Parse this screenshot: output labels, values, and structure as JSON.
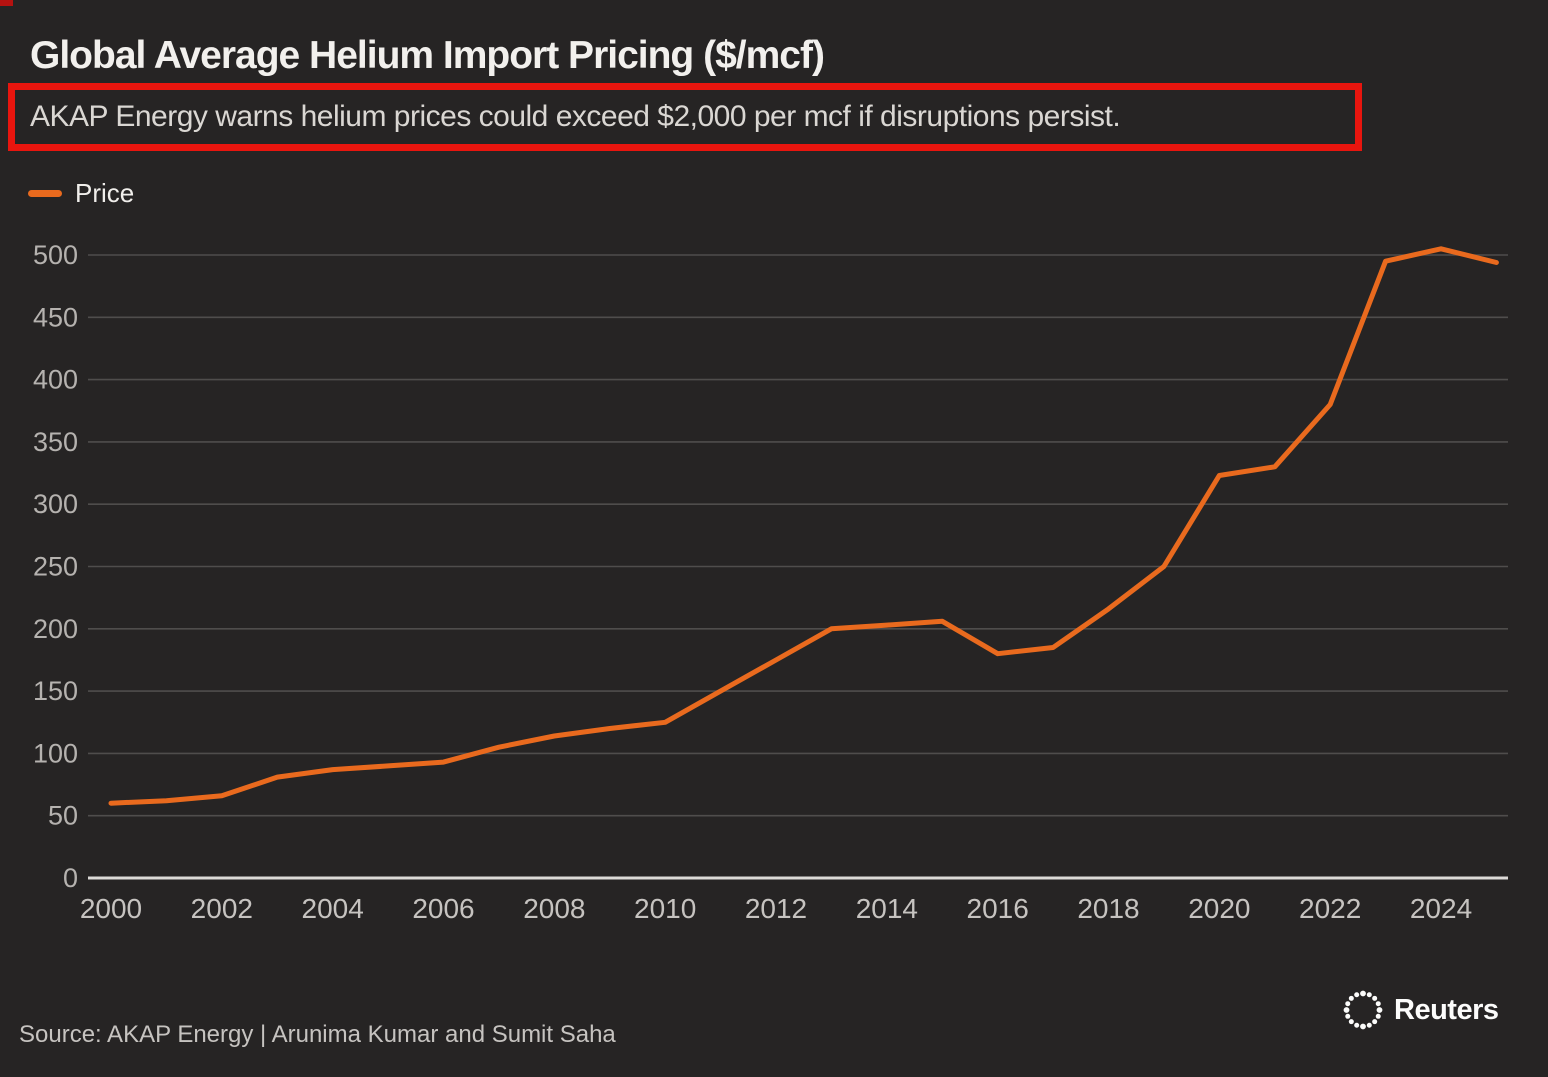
{
  "background_color": "#262424",
  "header": {
    "title": "Global Average Helium Import Pricing ($/mcf)",
    "subtitle": "AKAP Energy warns helium prices could exceed $2,000 per mcf if disruptions persist.",
    "highlight_box_color": "#e8150e"
  },
  "legend": {
    "items": [
      {
        "label": "Price",
        "color": "#e96a1e"
      }
    ]
  },
  "chart_data": {
    "type": "line",
    "title": "Global Average Helium Import Pricing ($/mcf)",
    "annotation": "AKAP Energy warns helium prices could exceed $2,000 per mcf if disruptions persist.",
    "x": [
      2000,
      2001,
      2002,
      2003,
      2004,
      2005,
      2006,
      2007,
      2008,
      2009,
      2010,
      2011,
      2012,
      2013,
      2014,
      2015,
      2016,
      2017,
      2018,
      2019,
      2020,
      2021,
      2022,
      2023,
      2024,
      2025
    ],
    "series": [
      {
        "name": "Price",
        "color": "#e96a1e",
        "values": [
          60,
          62,
          66,
          81,
          87,
          90,
          93,
          105,
          114,
          120,
          125,
          150,
          175,
          200,
          203,
          206,
          180,
          185,
          216,
          250,
          323,
          330,
          380,
          495,
          505,
          494
        ]
      }
    ],
    "x_tick_labels": [
      "2000",
      "2002",
      "2004",
      "2006",
      "2008",
      "2010",
      "2012",
      "2014",
      "2016",
      "2018",
      "2020",
      "2022",
      "2024"
    ],
    "y_ticks": [
      0,
      50,
      100,
      150,
      200,
      250,
      300,
      350,
      400,
      450,
      500
    ],
    "ylim": [
      0,
      500
    ],
    "xlim": [
      2000,
      2025
    ],
    "grid": "horizontal",
    "legend_position": "top-left",
    "colors": {
      "line": "#e96a1e",
      "grid": "#4f4d4c",
      "axis": "#dcdad7",
      "y_tick_labels": "#b5b2af",
      "x_tick_labels": "#c6c3c0"
    }
  },
  "footer": {
    "source": "Source: AKAP Energy | Arunima Kumar and Sumit Saha",
    "brand": "Reuters"
  }
}
